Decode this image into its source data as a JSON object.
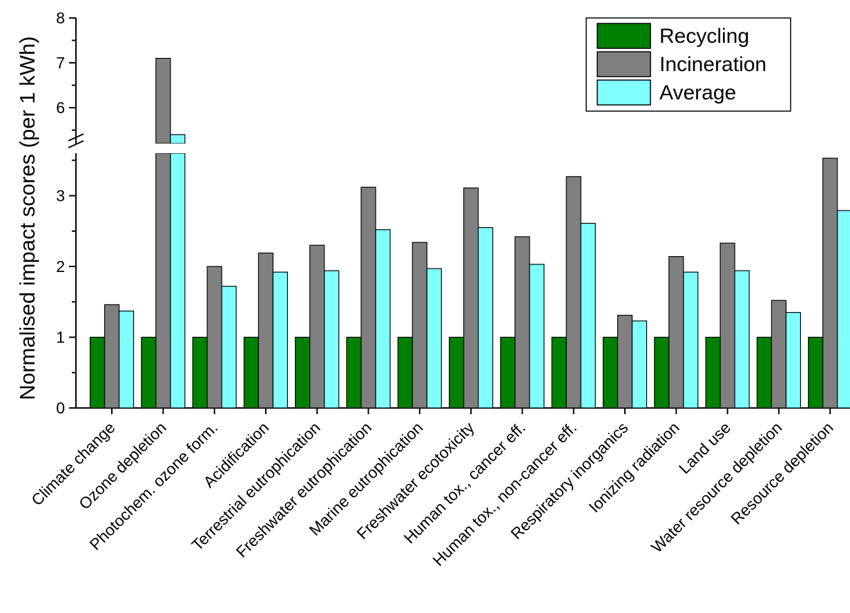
{
  "chart_data": {
    "type": "bar",
    "title": "",
    "xlabel": "",
    "ylabel": "Normalised impact scores (per 1 kWh)",
    "y_axis_break": {
      "lower_range": [
        0,
        3.6
      ],
      "upper_range": [
        5.2,
        8
      ]
    },
    "yticks_lower": [
      "0",
      "1",
      "2",
      "3"
    ],
    "yticks_upper": [
      "6",
      "7",
      "8"
    ],
    "ytick_values_lower": [
      0,
      1,
      2,
      3
    ],
    "ytick_values_upper": [
      6,
      7,
      8
    ],
    "grid": false,
    "legend_position": "top-right",
    "categories": [
      "Climate change",
      "Ozone depletion",
      "Photochem. ozone form.",
      "Acidification",
      "Terrestrial eutrophication",
      "Freshwater eutrophication",
      "Marine eutrophication",
      "Freshwater ecotoxicity",
      "Human tox., cancer eff.",
      "Human tox., non-cancer eff.",
      "Respiratory inorganics",
      "Ionizing radiation",
      "Land use",
      "Water resource depletion",
      "Resource depletion"
    ],
    "series": [
      {
        "name": "Recycling",
        "color": "#008000",
        "values": [
          1,
          1,
          1,
          1,
          1,
          1,
          1,
          1,
          1,
          1,
          1,
          1,
          1,
          1,
          1
        ]
      },
      {
        "name": "Incineration",
        "color": "#808080",
        "values": [
          1.46,
          7.1,
          2.0,
          2.19,
          2.3,
          3.12,
          2.34,
          3.11,
          2.42,
          3.27,
          1.31,
          2.14,
          2.33,
          1.52,
          3.53
        ]
      },
      {
        "name": "Average",
        "color": "#80ffff",
        "values": [
          1.37,
          5.4,
          1.72,
          1.92,
          1.94,
          2.52,
          1.97,
          2.55,
          2.03,
          2.61,
          1.23,
          1.92,
          1.94,
          1.35,
          2.79
        ]
      }
    ]
  }
}
